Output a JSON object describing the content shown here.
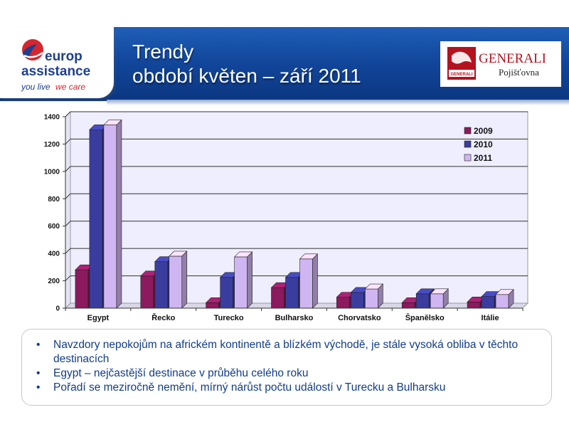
{
  "header": {
    "title_line1": "Trendy",
    "title_line2": "období květen – září 2011"
  },
  "logos": {
    "europ_line1": "europ",
    "europ_line2": "assistance",
    "europ_tag_a": "you live",
    "europ_tag_b": "we care",
    "generali_word": "GENERALI",
    "generali_sub": "Pojišťovna",
    "generali_small": "GENERALI"
  },
  "colors": {
    "header_blue": "#12479c",
    "text_blue": "#123c8c",
    "s2009": "#8b1a5e",
    "s2010": "#3a3d9e",
    "s2011": "#cfb6f2",
    "plot_bg": "#eeeeff",
    "generali_red": "#b3121f",
    "europ_red": "#d7262e"
  },
  "chart_data": {
    "type": "bar",
    "categories": [
      "Egypt",
      "Řecko",
      "Turecko",
      "Bulharsko",
      "Chorvatsko",
      "Španělsko",
      "Itálie"
    ],
    "series": [
      {
        "name": "2009",
        "values": [
          280,
          235,
          40,
          150,
          80,
          40,
          45
        ]
      },
      {
        "name": "2010",
        "values": [
          1305,
          340,
          225,
          225,
          115,
          105,
          85
        ]
      },
      {
        "name": "2011",
        "values": [
          1340,
          380,
          375,
          360,
          140,
          105,
          100
        ]
      }
    ],
    "ylim": [
      0,
      1400
    ],
    "yticks": [
      "0",
      "200",
      "400",
      "600",
      "800",
      "1000",
      "1200",
      "1400"
    ],
    "grid": true,
    "legend_position": "top-right",
    "title": "",
    "xlabel": "",
    "ylabel": ""
  },
  "bullets": [
    "Navzdory nepokojům na africkém kontinentě a blízkém východě, je stále vysoká obliba v těchto destinacích",
    "Egypt – nejčastější destinace v průběhu celého roku",
    "Pořadí se meziročně nemění, mírný nárůst počtu událostí v Turecku a Bulharsku"
  ]
}
